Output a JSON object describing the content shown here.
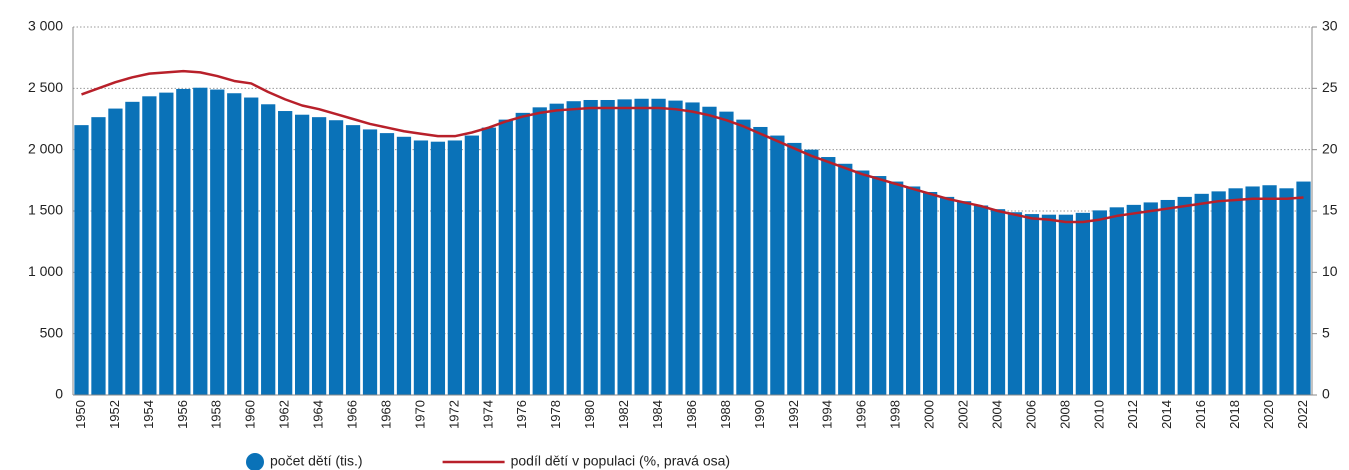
{
  "chart_data": {
    "type": "bar",
    "categories": [
      1950,
      null,
      1952,
      null,
      1954,
      null,
      1956,
      null,
      1958,
      null,
      1960,
      null,
      1962,
      null,
      1964,
      null,
      1966,
      null,
      1968,
      null,
      1970,
      null,
      1972,
      null,
      1974,
      null,
      1976,
      null,
      1978,
      null,
      1980,
      null,
      1982,
      null,
      1984,
      null,
      1986,
      null,
      1988,
      null,
      1990,
      null,
      1992,
      null,
      1994,
      null,
      1996,
      null,
      1998,
      null,
      2000,
      null,
      2002,
      null,
      2004,
      null,
      2006,
      null,
      2008,
      null,
      2010,
      null,
      2012,
      null,
      2014,
      null,
      2016,
      null,
      2018,
      null,
      2020,
      null,
      2022
    ],
    "series": [
      {
        "name": "počet dětí (tis.)",
        "type": "bar",
        "color": "#0a72b8",
        "values": [
          2200,
          2265,
          2335,
          2390,
          2435,
          2465,
          2495,
          2505,
          2490,
          2460,
          2425,
          2370,
          2315,
          2285,
          2265,
          2240,
          2200,
          2165,
          2135,
          2105,
          2075,
          2065,
          2075,
          2115,
          2180,
          2245,
          2300,
          2345,
          2375,
          2395,
          2405,
          2405,
          2410,
          2415,
          2415,
          2400,
          2385,
          2350,
          2310,
          2245,
          2185,
          2115,
          2055,
          2000,
          1940,
          1885,
          1830,
          1785,
          1740,
          1700,
          1655,
          1615,
          1580,
          1545,
          1515,
          1490,
          1475,
          1470,
          1470,
          1485,
          1505,
          1530,
          1550,
          1570,
          1590,
          1615,
          1640,
          1660,
          1685,
          1700,
          1710,
          1685,
          1740
        ]
      },
      {
        "name": "podíl dětí v populaci (%, pravá osa)",
        "type": "line",
        "axis": "y2",
        "color": "#b8202a",
        "values": [
          24.5,
          25.0,
          25.5,
          25.9,
          26.2,
          26.3,
          26.4,
          26.3,
          26.0,
          25.6,
          25.4,
          24.7,
          24.1,
          23.6,
          23.3,
          22.9,
          22.5,
          22.1,
          21.8,
          21.5,
          21.3,
          21.1,
          21.1,
          21.4,
          21.8,
          22.3,
          22.7,
          23.0,
          23.2,
          23.3,
          23.4,
          23.4,
          23.4,
          23.4,
          23.4,
          23.3,
          23.1,
          22.8,
          22.4,
          21.9,
          21.3,
          20.7,
          20.1,
          19.5,
          19.0,
          18.5,
          18.0,
          17.6,
          17.2,
          16.8,
          16.4,
          16.0,
          15.7,
          15.4,
          15.0,
          14.7,
          14.4,
          14.3,
          14.1,
          14.1,
          14.3,
          14.6,
          14.8,
          15.0,
          15.2,
          15.4,
          15.6,
          15.8,
          15.9,
          16.0,
          16.0,
          16.0,
          16.1
        ]
      }
    ],
    "ylim": [
      0,
      3000
    ],
    "yticks": [
      0,
      500,
      {
        "value": 1000,
        "label": "1 000"
      },
      {
        "value": 1500,
        "label": "1 500"
      },
      {
        "value": 2000,
        "label": "2 000"
      },
      {
        "value": 2500,
        "label": "2 500"
      },
      {
        "value": 3000,
        "label": "3 000"
      }
    ],
    "y2lim": [
      0,
      30
    ],
    "y2ticks": [
      0,
      5,
      10,
      15,
      20,
      25,
      30
    ],
    "grid": true
  }
}
